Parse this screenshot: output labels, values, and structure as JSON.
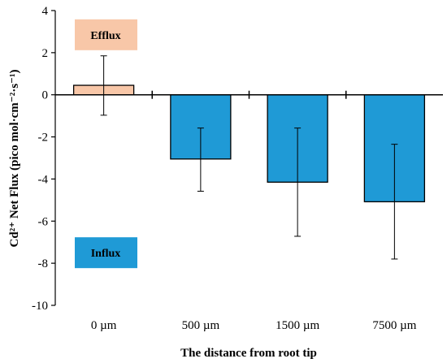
{
  "chart_data": {
    "type": "bar",
    "categories": [
      "0 µm",
      "500 µm",
      "1500 µm",
      "7500 µm"
    ],
    "values": [
      0.45,
      -3.05,
      -4.15,
      -5.08
    ],
    "error_upper": [
      1.85,
      -1.58,
      -1.58,
      -2.35
    ],
    "error_lower": [
      -0.97,
      -4.58,
      -6.72,
      -7.8
    ],
    "bar_colors": [
      "#F8C7A8",
      "#1F9AD6",
      "#1F9AD6",
      "#1F9AD6"
    ],
    "xlabel": "The distance from root tip",
    "ylabel": "Cd²⁺ Net Flux (pico mol·cm⁻²·s⁻¹)",
    "ylim": [
      -10,
      4
    ],
    "yticks": [
      "-10",
      "-8",
      "-6",
      "-4",
      "-2",
      "0",
      "2",
      "4"
    ],
    "grid": false,
    "annotations": [
      {
        "text": "Efflux",
        "color": "#F8C7A8",
        "at_y": 2.85
      },
      {
        "text": "Influx",
        "color": "#1F9AD6",
        "at_y": -7.5
      }
    ]
  }
}
